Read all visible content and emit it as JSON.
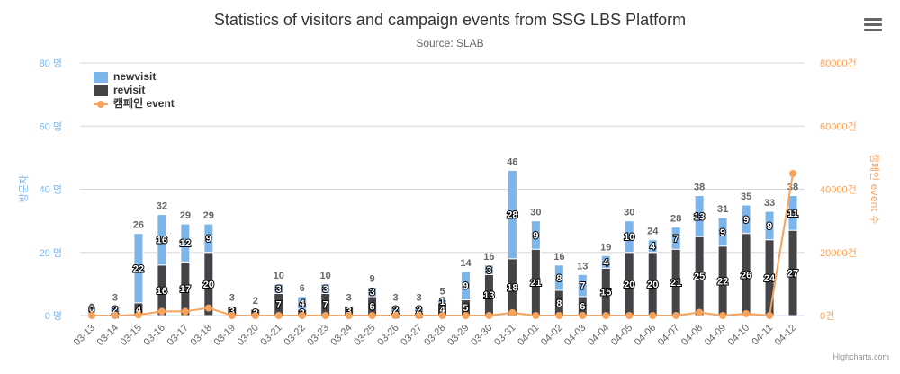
{
  "title": "Statistics of visitors and campaign events from SSG LBS Platform",
  "subtitle": "Source: SLAB",
  "credits": "Highcharts.com",
  "menu": {
    "icon": "hamburger-menu-icon"
  },
  "colors": {
    "newvisit": "#7cb5ec",
    "revisit": "#434348",
    "event": "#f7a35c",
    "grid": "#d8d8d8",
    "left_axis": "#7cb5ec",
    "right_axis": "#f7a35c"
  },
  "chart_data": {
    "type": "bar",
    "stacking": "normal",
    "categories": [
      "03-13",
      "03-14",
      "03-15",
      "03-16",
      "03-17",
      "03-18",
      "03-19",
      "03-20",
      "03-21",
      "03-22",
      "03-23",
      "03-24",
      "03-25",
      "03-26",
      "03-27",
      "03-28",
      "03-29",
      "03-30",
      "03-31",
      "04-01",
      "04-02",
      "04-03",
      "04-04",
      "04-05",
      "04-06",
      "04-07",
      "04-08",
      "04-09",
      "04-10",
      "04-11",
      "04-12"
    ],
    "series": [
      {
        "name": "newvisit",
        "type": "bar",
        "axis": "left",
        "values": [
          0,
          2,
          22,
          16,
          12,
          9,
          0,
          0,
          3,
          4,
          3,
          0,
          3,
          2,
          2,
          1,
          9,
          3,
          28,
          9,
          8,
          7,
          4,
          10,
          4,
          7,
          13,
          9,
          9,
          9,
          11
        ]
      },
      {
        "name": "revisit",
        "type": "bar",
        "axis": "left",
        "values": [
          0,
          1,
          4,
          16,
          17,
          20,
          3,
          2,
          7,
          2,
          7,
          3,
          6,
          1,
          1,
          4,
          5,
          13,
          18,
          21,
          8,
          6,
          15,
          20,
          20,
          21,
          25,
          22,
          26,
          24,
          27
        ]
      },
      {
        "name": "캠페인 event",
        "type": "line",
        "axis": "right",
        "values": [
          0,
          0,
          200,
          1300,
          1300,
          2400,
          0,
          0,
          0,
          0,
          0,
          0,
          0,
          0,
          0,
          0,
          0,
          0,
          900,
          0,
          0,
          0,
          0,
          0,
          0,
          0,
          1000,
          0,
          600,
          0,
          45000
        ]
      }
    ],
    "totals": [
      0,
      3,
      26,
      32,
      29,
      29,
      3,
      2,
      10,
      6,
      10,
      3,
      9,
      3,
      3,
      5,
      14,
      16,
      46,
      30,
      16,
      13,
      19,
      30,
      24,
      28,
      38,
      31,
      35,
      33,
      38
    ],
    "left_axis": {
      "title": "방문자",
      "ticks": [
        "0 명",
        "20 명",
        "40 명",
        "60 명",
        "80 명"
      ],
      "tick_values": [
        0,
        20,
        40,
        60,
        80
      ],
      "ylim": [
        0,
        80
      ]
    },
    "right_axis": {
      "title": "캠페인 event 수",
      "ticks": [
        "0건",
        "20000건",
        "40000건",
        "60000건",
        "80000건"
      ],
      "tick_values": [
        0,
        20000,
        40000,
        60000,
        80000
      ],
      "ylim": [
        0,
        80000
      ]
    },
    "grid": true,
    "legend_position": "top-left"
  }
}
